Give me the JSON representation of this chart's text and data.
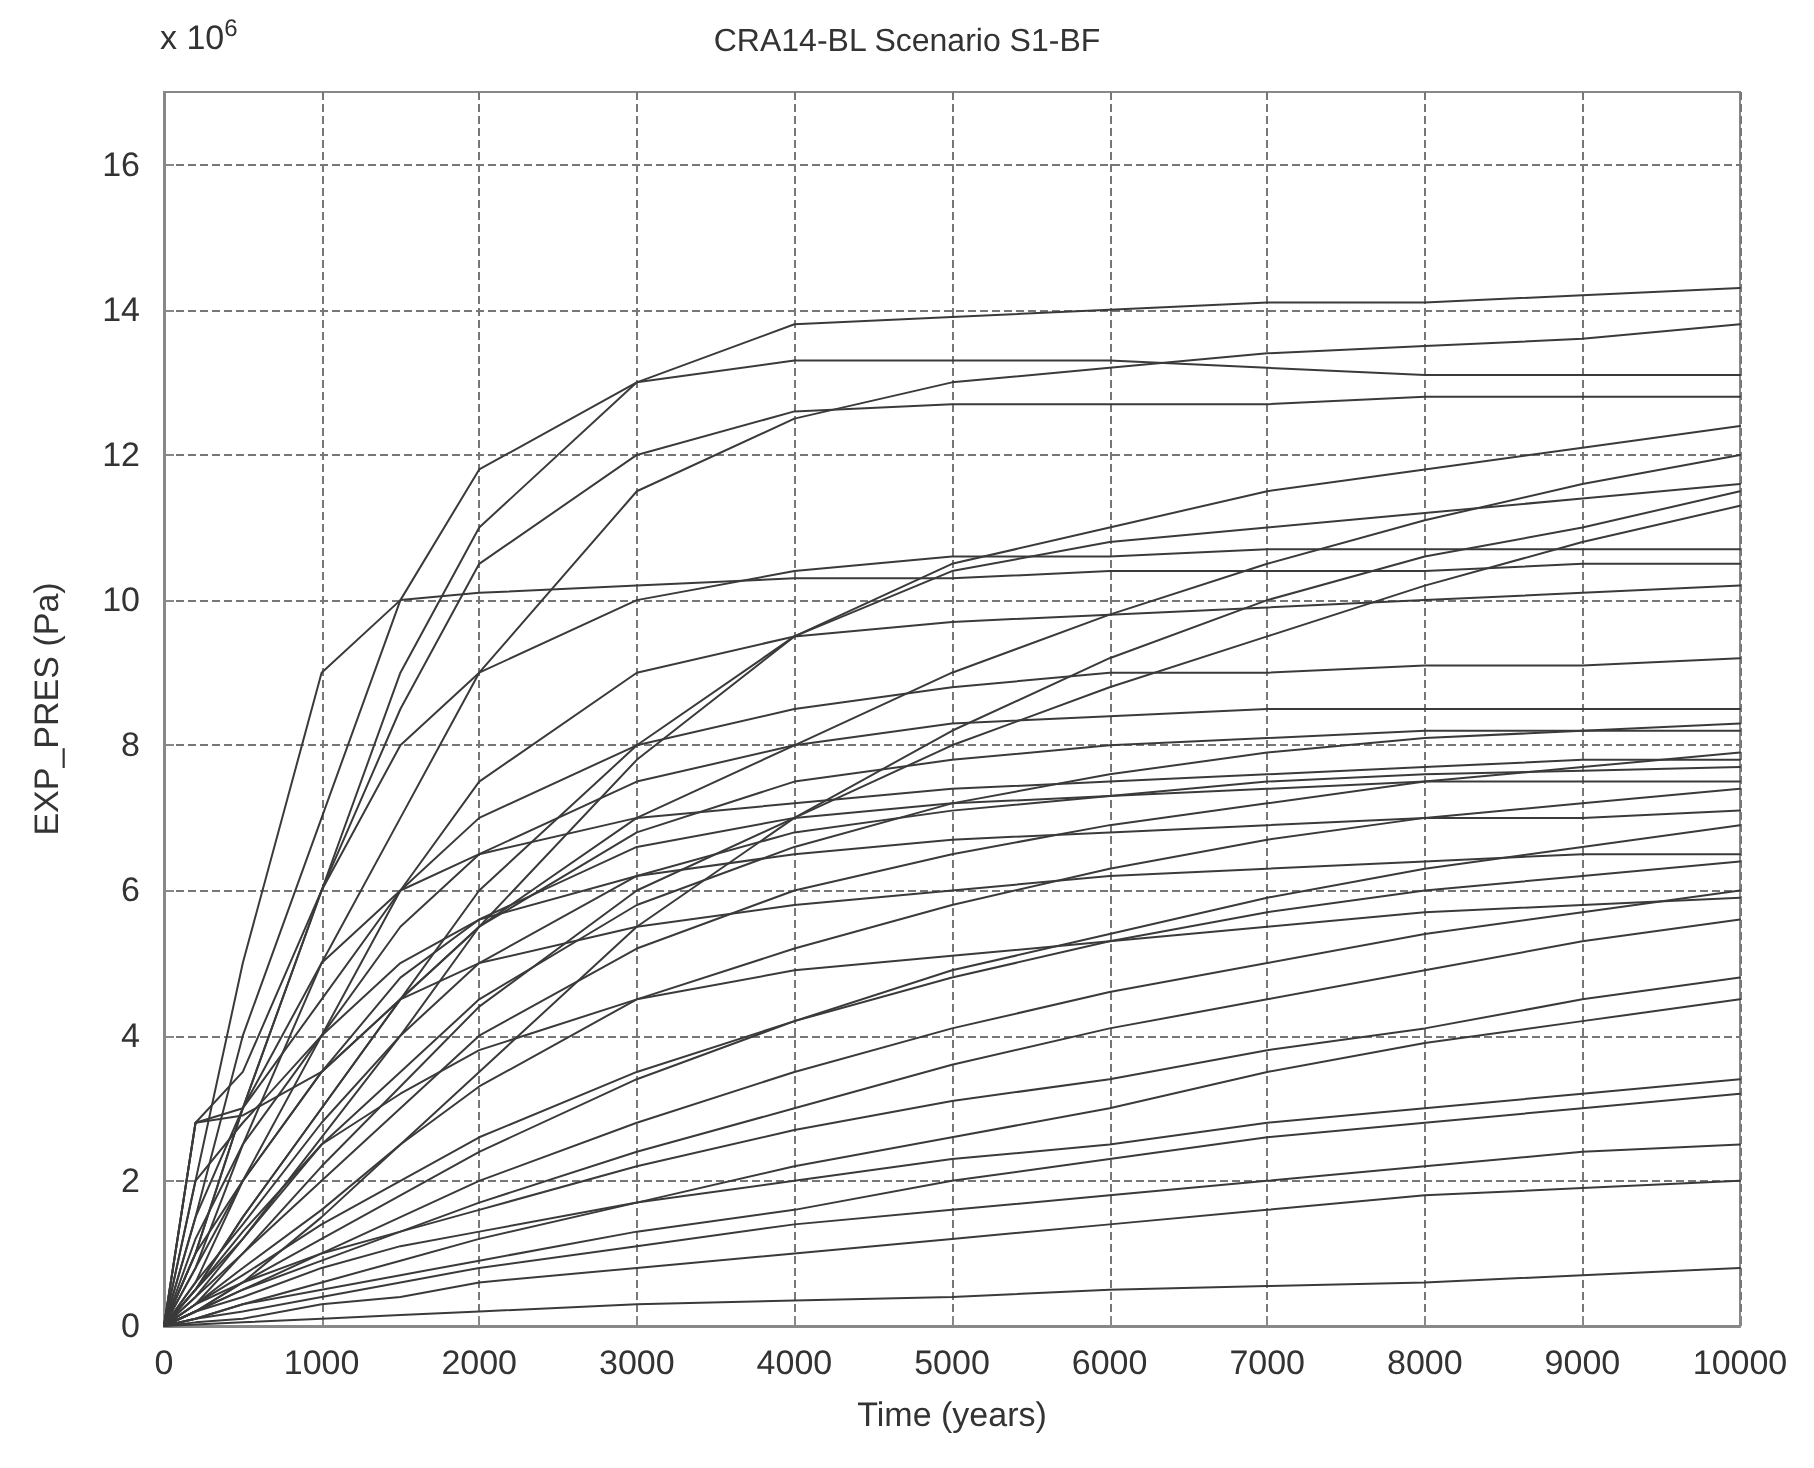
{
  "chart_data": {
    "type": "line",
    "title": "CRA14-BL Scenario S1-BF",
    "xlabel": "Time (years)",
    "ylabel": "EXP_PRES (Pa)",
    "annotations": [
      "x 10$^{6}$"
    ],
    "x": [
      0,
      200,
      500,
      1000,
      1500,
      2000,
      3000,
      4000,
      5000,
      6000,
      7000,
      8000,
      9000,
      10000
    ],
    "xlim": [
      0,
      10000
    ],
    "xticks": [
      0,
      1000,
      2000,
      3000,
      4000,
      5000,
      6000,
      7000,
      8000,
      9000,
      10000
    ],
    "ylim": [
      0,
      17
    ],
    "yticks": [
      0,
      2,
      4,
      6,
      8,
      10,
      12,
      14,
      16
    ],
    "grid": true,
    "marker": "none",
    "line_style": "solid",
    "series": [
      {
        "color": "#3a3a3a",
        "values": [
          0,
          2,
          5,
          9,
          10,
          10.1,
          10.2,
          10.3,
          10.3,
          10.4,
          10.4,
          10.4,
          10.5,
          10.5
        ]
      },
      {
        "color": "#3a3a3a",
        "values": [
          0,
          1.5,
          4,
          7,
          10,
          11.8,
          13,
          13.3,
          13.3,
          13.3,
          13.2,
          13.1,
          13.1,
          13.1
        ]
      },
      {
        "color": "#3a3a3a",
        "values": [
          0,
          1,
          3,
          6,
          9,
          11,
          13,
          13.8,
          13.9,
          14,
          14.1,
          14.1,
          14.2,
          14.3
        ]
      },
      {
        "color": "#3a3a3a",
        "values": [
          0,
          1,
          3,
          6,
          8.5,
          10.5,
          12,
          12.6,
          12.7,
          12.7,
          12.7,
          12.8,
          12.8,
          12.8
        ]
      },
      {
        "color": "#3a3a3a",
        "values": [
          0,
          0.8,
          2.5,
          5,
          7,
          9,
          11.5,
          12.5,
          13,
          13.2,
          13.4,
          13.5,
          13.6,
          13.8
        ]
      },
      {
        "color": "#3a3a3a",
        "values": [
          0,
          2.8,
          3.5,
          6,
          8,
          9,
          10,
          10.4,
          10.6,
          10.6,
          10.7,
          10.7,
          10.7,
          10.7
        ]
      },
      {
        "color": "#3a3a3a",
        "values": [
          0,
          0.5,
          1.5,
          3,
          4.5,
          6,
          8,
          9.5,
          10.5,
          11,
          11.5,
          11.8,
          12.1,
          12.4
        ]
      },
      {
        "color": "#3a3a3a",
        "values": [
          0,
          0.6,
          2,
          4,
          6,
          7.5,
          9,
          9.5,
          9.7,
          9.8,
          9.9,
          10,
          10.1,
          10.2
        ]
      },
      {
        "color": "#3a3a3a",
        "values": [
          0,
          2.8,
          3,
          4.5,
          6,
          7,
          8,
          8.5,
          8.8,
          9,
          9,
          9.1,
          9.1,
          9.2
        ]
      },
      {
        "color": "#3a3a3a",
        "values": [
          0,
          0.5,
          1.5,
          3,
          4.5,
          5.5,
          7,
          8,
          9,
          9.8,
          10.5,
          11.1,
          11.6,
          12
        ]
      },
      {
        "color": "#3a3a3a",
        "values": [
          0,
          2,
          2.8,
          4,
          5.5,
          6.5,
          7.5,
          8,
          8.3,
          8.4,
          8.5,
          8.5,
          8.5,
          8.5
        ]
      },
      {
        "color": "#3a3a3a",
        "values": [
          0,
          0.3,
          1,
          2.2,
          3.3,
          4.4,
          6,
          7,
          8,
          8.8,
          9.5,
          10.2,
          10.8,
          11.3
        ]
      },
      {
        "color": "#3a3a3a",
        "values": [
          0,
          1,
          2,
          3.5,
          4.8,
          5.6,
          6.6,
          7,
          7.2,
          7.3,
          7.4,
          7.5,
          7.5,
          7.5
        ]
      },
      {
        "color": "#3a3a3a",
        "values": [
          0,
          0.5,
          1.2,
          2.5,
          3.5,
          4.5,
          5.8,
          6.6,
          7.2,
          7.6,
          7.9,
          8.1,
          8.2,
          8.3
        ]
      },
      {
        "color": "#3a3a3a",
        "values": [
          0,
          0.8,
          2,
          3.5,
          4.5,
          5,
          5.5,
          5.8,
          6,
          6.2,
          6.3,
          6.4,
          6.5,
          6.5
        ]
      },
      {
        "color": "#3a3a3a",
        "values": [
          0,
          0.4,
          1,
          2,
          3,
          4,
          5.2,
          6,
          6.5,
          6.9,
          7.2,
          7.5,
          7.7,
          7.9
        ]
      },
      {
        "color": "#3a3a3a",
        "values": [
          0,
          0.3,
          0.8,
          1.6,
          2.5,
          3.3,
          4.5,
          5.2,
          5.8,
          6.3,
          6.7,
          7,
          7.2,
          7.4
        ]
      },
      {
        "color": "#3a3a3a",
        "values": [
          0,
          0.2,
          0.6,
          1.2,
          1.8,
          2.4,
          3.4,
          4.2,
          4.9,
          5.4,
          5.9,
          6.3,
          6.6,
          6.9
        ]
      },
      {
        "color": "#3a3a3a",
        "values": [
          0,
          0.3,
          0.7,
          1.4,
          2,
          2.6,
          3.5,
          4.2,
          4.8,
          5.3,
          5.7,
          6,
          6.2,
          6.4
        ]
      },
      {
        "color": "#3a3a3a",
        "values": [
          0,
          0.5,
          1.3,
          2.5,
          3.2,
          3.8,
          4.5,
          4.9,
          5.1,
          5.3,
          5.5,
          5.7,
          5.8,
          5.9
        ]
      },
      {
        "color": "#3a3a3a",
        "values": [
          0,
          0.2,
          0.5,
          1,
          1.5,
          2,
          2.8,
          3.5,
          4.1,
          4.6,
          5,
          5.4,
          5.7,
          6
        ]
      },
      {
        "color": "#3a3a3a",
        "values": [
          0,
          0.2,
          0.5,
          0.9,
          1.3,
          1.7,
          2.4,
          3,
          3.6,
          4.1,
          4.5,
          4.9,
          5.3,
          5.6
        ]
      },
      {
        "color": "#3a3a3a",
        "values": [
          0,
          0.3,
          0.6,
          1,
          1.3,
          1.6,
          2.2,
          2.7,
          3.1,
          3.4,
          3.8,
          4.1,
          4.5,
          4.8
        ]
      },
      {
        "color": "#3a3a3a",
        "values": [
          0,
          0.1,
          0.3,
          0.6,
          0.9,
          1.2,
          1.7,
          2.2,
          2.6,
          3,
          3.5,
          3.9,
          4.2,
          4.5
        ]
      },
      {
        "color": "#3a3a3a",
        "values": [
          0,
          0.2,
          0.4,
          0.8,
          1.1,
          1.3,
          1.7,
          2,
          2.3,
          2.5,
          2.8,
          3,
          3.2,
          3.4
        ]
      },
      {
        "color": "#3a3a3a",
        "values": [
          0,
          0.1,
          0.3,
          0.5,
          0.7,
          0.9,
          1.3,
          1.6,
          2,
          2.3,
          2.6,
          2.8,
          3,
          3.2
        ]
      },
      {
        "color": "#3a3a3a",
        "values": [
          0,
          0.1,
          0.2,
          0.4,
          0.6,
          0.8,
          1.1,
          1.4,
          1.6,
          1.8,
          2,
          2.2,
          2.4,
          2.5
        ]
      },
      {
        "color": "#3a3a3a",
        "values": [
          0,
          0.05,
          0.1,
          0.3,
          0.4,
          0.6,
          0.8,
          1,
          1.2,
          1.4,
          1.6,
          1.8,
          1.9,
          2
        ]
      },
      {
        "color": "#3a3a3a",
        "values": [
          0,
          0.02,
          0.05,
          0.1,
          0.15,
          0.2,
          0.3,
          0.35,
          0.4,
          0.5,
          0.55,
          0.6,
          0.7,
          0.8
        ]
      },
      {
        "color": "#3a3a3a",
        "values": [
          0,
          2.8,
          2.9,
          3.5,
          4.5,
          5.5,
          6.8,
          7.5,
          7.8,
          8,
          8.1,
          8.2,
          8.2,
          8.2
        ]
      },
      {
        "color": "#3a3a3a",
        "values": [
          0,
          0.4,
          1.2,
          2.6,
          4,
          5.5,
          7.8,
          9.5,
          10.4,
          10.8,
          11,
          11.2,
          11.4,
          11.6
        ]
      },
      {
        "color": "#3a3a3a",
        "values": [
          0,
          0.2,
          0.6,
          1.5,
          2.5,
          3.5,
          5.5,
          7,
          8.2,
          9.2,
          10,
          10.6,
          11,
          11.5
        ]
      },
      {
        "color": "#3a3a3a",
        "values": [
          0,
          1.5,
          3,
          5,
          6,
          6.5,
          7,
          7.2,
          7.4,
          7.5,
          7.6,
          7.7,
          7.8,
          7.8
        ]
      },
      {
        "color": "#3a3a3a",
        "values": [
          0,
          0.6,
          1.4,
          2.8,
          4,
          5,
          6.2,
          6.8,
          7.1,
          7.3,
          7.5,
          7.6,
          7.65,
          7.7
        ]
      },
      {
        "color": "#3a3a3a",
        "values": [
          0,
          1.2,
          2.5,
          4,
          5,
          5.6,
          6.2,
          6.5,
          6.7,
          6.8,
          6.9,
          7,
          7,
          7.1
        ]
      }
    ]
  }
}
